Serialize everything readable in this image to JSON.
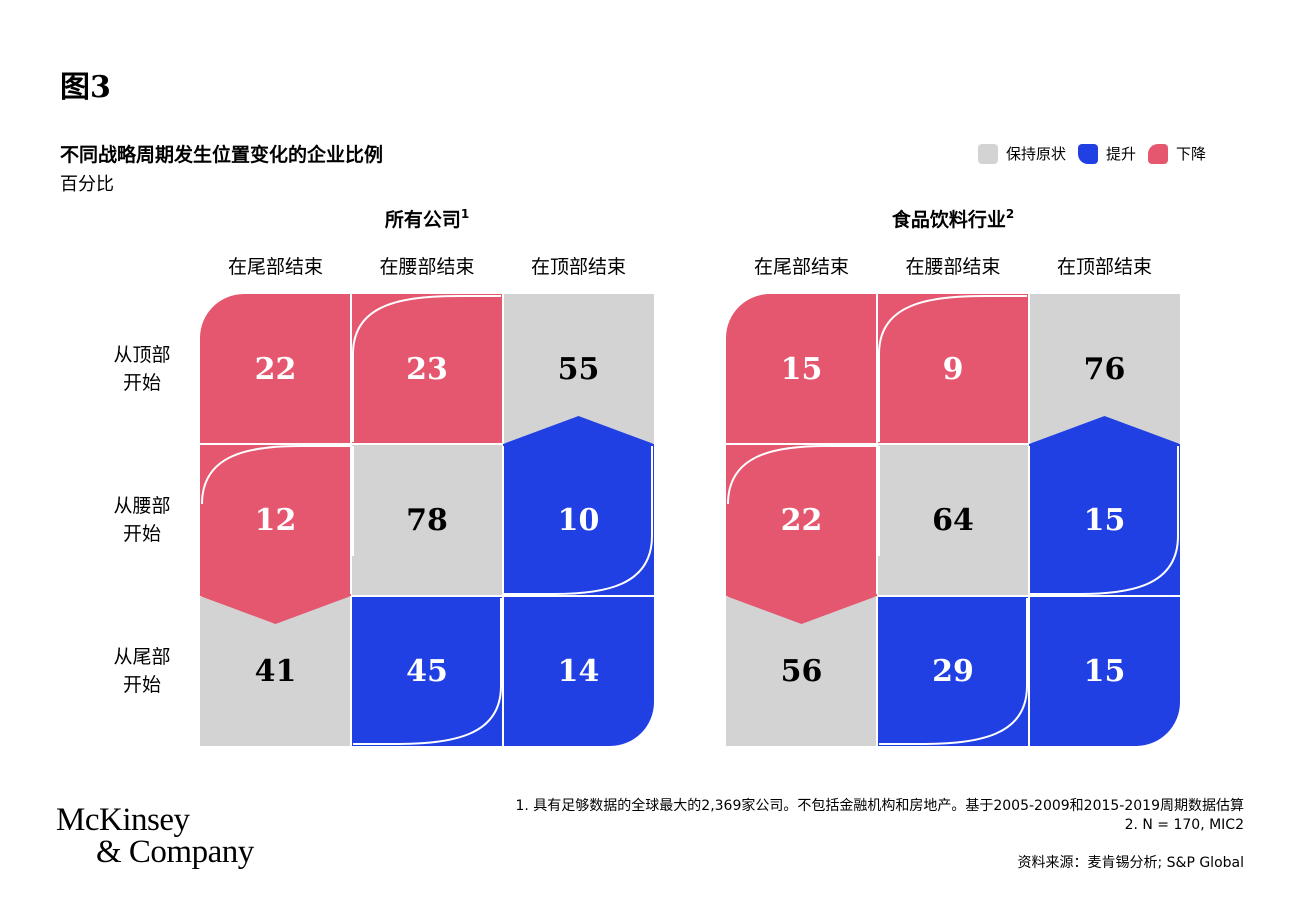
{
  "figure_label": "图3",
  "colors": {
    "same": "#d3d3d3",
    "up": "#2140e3",
    "down": "#e5566f",
    "text_dark": "#000000",
    "text_light": "#ffffff"
  },
  "legend_placement": "top-right",
  "footnotes": [
    "1. 具有足够数据的全球最大的2,369家公司。不包括金融机构和房地产。基于2005-2009和2015-2019周期数据估算",
    "2. N = 170, MIC2"
  ],
  "source": "资料来源：麦肯锡分析; S&P Global",
  "logo": {
    "line1": "McKinsey",
    "line2": "& Company"
  },
  "chart_data": {
    "type": "heatmap",
    "title": "不同战略周期发生位置变化的企业比例",
    "subtitle": "百分比",
    "legend": [
      {
        "key": "same",
        "label": "保持原状",
        "color": "#d3d3d3"
      },
      {
        "key": "up",
        "label": "提升",
        "color": "#2140e3"
      },
      {
        "key": "down",
        "label": "下降",
        "color": "#e5566f"
      }
    ],
    "column_labels": [
      "在尾部结束",
      "在腰部结束",
      "在顶部结束"
    ],
    "row_labels": [
      [
        "从顶部",
        "开始"
      ],
      [
        "从腰部",
        "开始"
      ],
      [
        "从尾部",
        "开始"
      ]
    ],
    "panels": [
      {
        "title": "所有公司",
        "superscript": "1",
        "values": [
          [
            22,
            23,
            55
          ],
          [
            12,
            78,
            10
          ],
          [
            41,
            45,
            14
          ]
        ],
        "categories": [
          [
            "down",
            "down",
            "same"
          ],
          [
            "down",
            "same",
            "up"
          ],
          [
            "same",
            "up",
            "up"
          ]
        ]
      },
      {
        "title": "食品饮料行业",
        "superscript": "2",
        "values": [
          [
            15,
            9,
            76
          ],
          [
            22,
            64,
            15
          ],
          [
            56,
            29,
            15
          ]
        ],
        "categories": [
          [
            "down",
            "down",
            "same"
          ],
          [
            "down",
            "same",
            "up"
          ],
          [
            "same",
            "up",
            "up"
          ]
        ]
      }
    ]
  }
}
